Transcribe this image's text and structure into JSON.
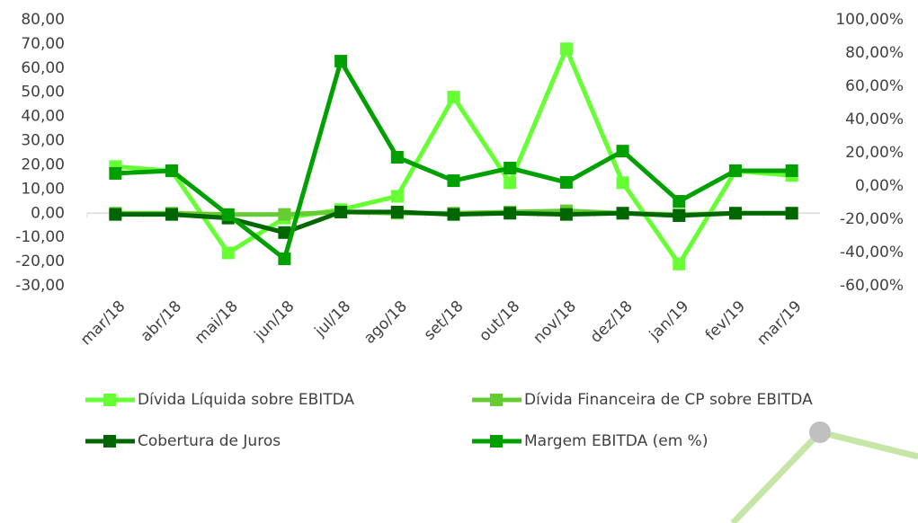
{
  "chart_data": {
    "type": "line",
    "categories": [
      "mar/18",
      "abr/18",
      "mai/18",
      "jun/18",
      "jul/18",
      "ago/18",
      "set/18",
      "out/18",
      "nov/18",
      "dez/18",
      "jan/19",
      "fev/19",
      "mar/19"
    ],
    "series": [
      {
        "name": "Dívida Líquida sobre EBITDA",
        "color": "#66ff33",
        "values": [
          19.3,
          17.5,
          -16.4,
          -2,
          1.5,
          7,
          48,
          12.6,
          68,
          12.6,
          -21,
          17.5,
          15.6
        ]
      },
      {
        "name": "Dívida Financeira de CP sobre EBITDA",
        "color": "#66cc33",
        "values": [
          0,
          0,
          -0.5,
          -0.5,
          0.5,
          0,
          0,
          0.5,
          1,
          0,
          -0.5,
          0,
          0
        ]
      },
      {
        "name": "Cobertura de Juros",
        "color": "#006600",
        "values": [
          -0.5,
          -0.5,
          -2,
          -8,
          0.5,
          0.5,
          -0.5,
          0,
          -0.5,
          0,
          -1,
          0,
          0
        ]
      },
      {
        "name": "Margem EBITDA (em %)",
        "color": "#00a000",
        "axis": "y2",
        "values": [
          7.6,
          9.2,
          -17.3,
          -43.8,
          75.1,
          17.3,
          3.2,
          10.8,
          2.2,
          21,
          -9.2,
          9.2,
          9.2
        ]
      }
    ],
    "ylim": [
      -30,
      80
    ],
    "yticks": [
      {
        "value": -30,
        "label": "-30,00"
      },
      {
        "value": -20,
        "label": "-20,00"
      },
      {
        "value": -10,
        "label": "-10,00"
      },
      {
        "value": 0,
        "label": "0,00"
      },
      {
        "value": 10,
        "label": "10,00"
      },
      {
        "value": 20,
        "label": "20,00"
      },
      {
        "value": 30,
        "label": "30,00"
      },
      {
        "value": 40,
        "label": "40,00"
      },
      {
        "value": 50,
        "label": "50,00"
      },
      {
        "value": 60,
        "label": "60,00"
      },
      {
        "value": 70,
        "label": "70,00"
      },
      {
        "value": 80,
        "label": "80,00"
      }
    ],
    "y2lim": [
      -60,
      100
    ],
    "y2ticks": [
      {
        "value": -60,
        "label": "-60,00%"
      },
      {
        "value": -40,
        "label": "-40,00%"
      },
      {
        "value": -20,
        "label": "-20,00%"
      },
      {
        "value": 0,
        "label": "0,00%"
      },
      {
        "value": 20,
        "label": "20,00%"
      },
      {
        "value": 40,
        "label": "40,00%"
      },
      {
        "value": 60,
        "label": "60,00%"
      },
      {
        "value": 80,
        "label": "80,00%"
      },
      {
        "value": 100,
        "label": "100,00%"
      }
    ],
    "legend": "bottom"
  }
}
